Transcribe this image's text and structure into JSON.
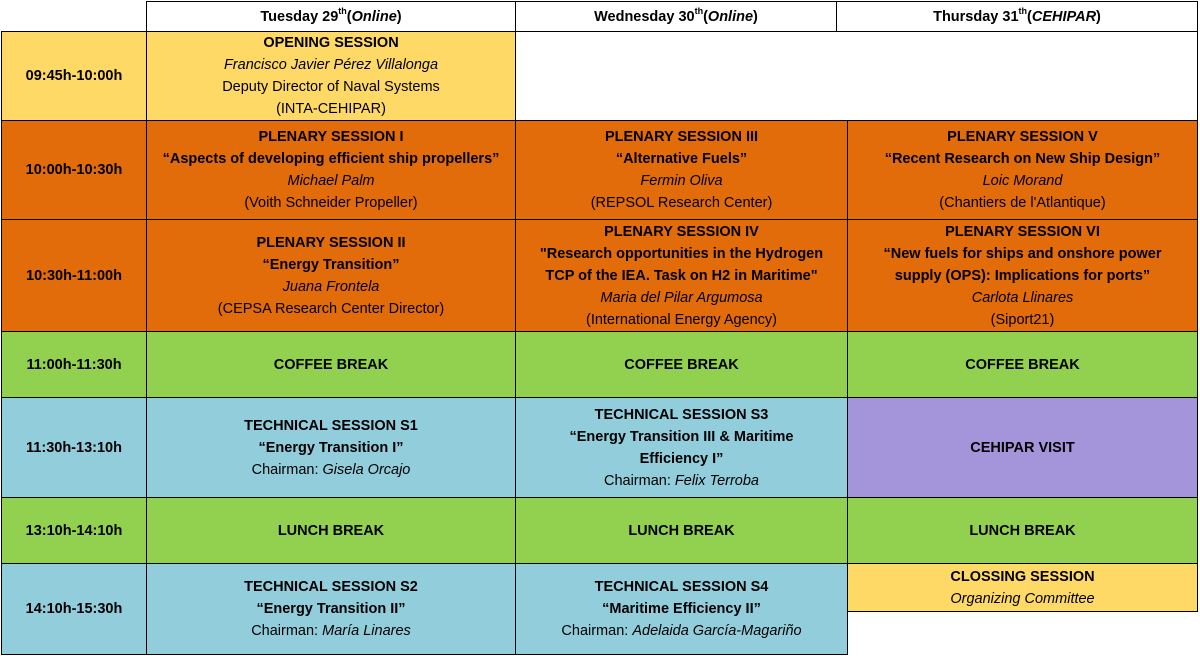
{
  "header": {
    "days": [
      {
        "name": "Tuesday 29",
        "sup": "th",
        "venue": "Online"
      },
      {
        "name": "Wednesday 30",
        "sup": "th",
        "venue": "Online"
      },
      {
        "name": "Thursday 31",
        "sup": "th",
        "venue": "CEHIPAR"
      }
    ]
  },
  "times": [
    "09:45h-10:00h",
    "10:00h-10:30h",
    "10:30h-11:00h",
    "11:00h-11:30h",
    "11:30h-13:10h",
    "13:10h-14:10h",
    "14:10h-15:30h"
  ],
  "opening": {
    "title": "OPENING SESSION",
    "speaker": "Francisco Javier Pérez Villalonga",
    "role": "Deputy Director of Naval Systems",
    "org": "(INTA-CEHIPAR)"
  },
  "plenary": {
    "s1": {
      "title": "PLENARY SESSION I",
      "topic": "“Aspects of developing efficient ship propellers”",
      "speaker": "Michael Palm",
      "org": "(Voith Schneider Propeller)"
    },
    "s2": {
      "title": "PLENARY SESSION II",
      "topic": "“Energy Transition”",
      "speaker": "Juana Frontela",
      "org": "(CEPSA Research Center Director)"
    },
    "s3": {
      "title": "PLENARY SESSION III",
      "topic": "“Alternative Fuels”",
      "speaker": "Fermin Oliva",
      "org": "(REPSOL Research Center)"
    },
    "s4": {
      "title": "PLENARY SESSION IV",
      "topic_line1": "\"Research opportunities in the Hydrogen",
      "topic_line2": "TCP of the IEA. Task on H2 in Maritime\"",
      "speaker": "Maria del Pilar Argumosa",
      "org": "(International Energy Agency)"
    },
    "s5": {
      "title": "PLENARY SESSION V",
      "topic": "“Recent Research on New Ship Design”",
      "speaker": "Loic Morand",
      "org": "(Chantiers de l'Atlantique)"
    },
    "s6": {
      "title": "PLENARY SESSION VI",
      "topic_line1": "“New fuels for ships and onshore power",
      "topic_line2": "supply (OPS): Implications for ports”",
      "speaker": "Carlota Llinares",
      "org": "(Siport21)"
    }
  },
  "coffee": "COFFEE BREAK",
  "lunch": "LUNCH BREAK",
  "chairman_label": "Chairman: ",
  "technical": {
    "s1": {
      "title": "TECHNICAL  SESSION S1",
      "topic": "“Energy Transition I”",
      "chair": "Gisela Orcajo"
    },
    "s2": {
      "title": "TECHNICAL SESSION S2",
      "topic": "“Energy Transition II”",
      "chair": "María Linares"
    },
    "s3": {
      "title": "TECHNICAL SESSION S3",
      "topic_line1": "“Energy Transition III & Maritime",
      "topic_line2": "Efficiency I”",
      "chair": "Felix Terroba"
    },
    "s4": {
      "title": "TECHNICAL SESSION S4",
      "topic": "“Maritime Efficiency II”",
      "chair": "Adelaida García-Magariño"
    }
  },
  "visit": "CEHIPAR VISIT",
  "closing": {
    "title": "CLOSSING SESSION",
    "committee": "Organizing Committee"
  },
  "colors": {
    "yellow": "#FFD966",
    "orange": "#E26B0A",
    "green": "#92D050",
    "blue": "#92CDDC",
    "purple": "#A495DB"
  }
}
